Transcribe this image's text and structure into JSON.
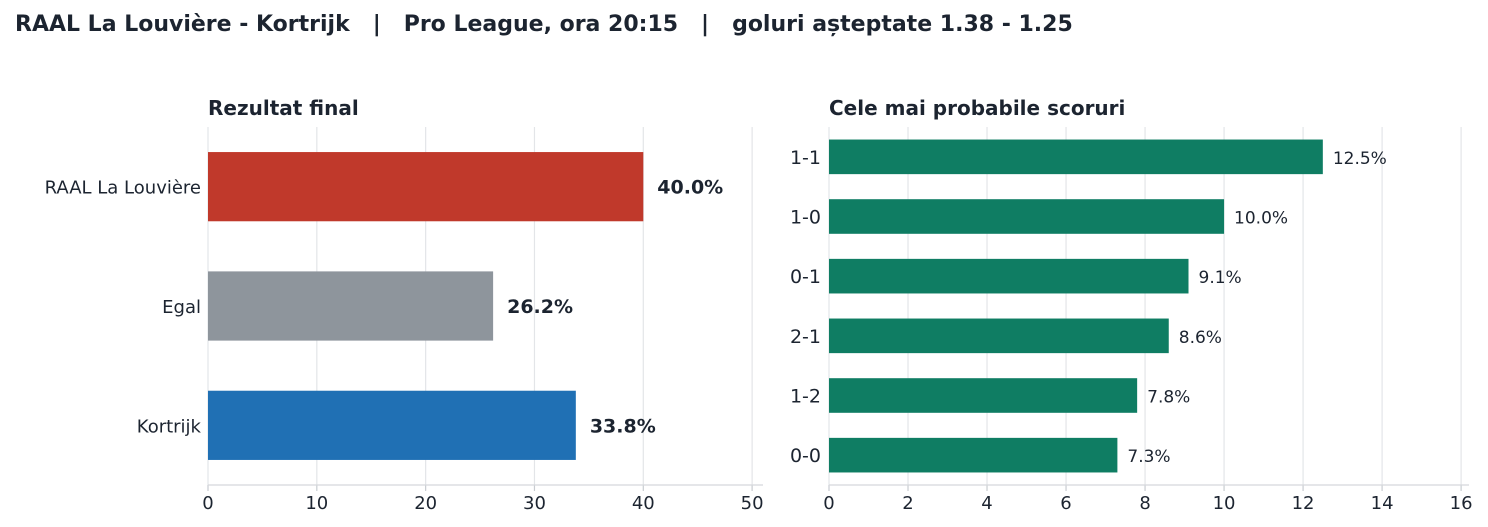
{
  "header": {
    "title": "RAAL La Louvière - Kortrijk   |   Pro League, ora 20:15   |   goluri așteptate 1.38 - 1.25"
  },
  "chart_data": [
    {
      "type": "bar",
      "orientation": "horizontal",
      "title": "Rezultat final",
      "categories": [
        "RAAL La Louvière",
        "Egal",
        "Kortrijk"
      ],
      "values": [
        40.0,
        26.2,
        33.8
      ],
      "value_labels": [
        "40.0%",
        "26.2%",
        "33.8%"
      ],
      "colors": [
        "#c0392b",
        "#8e959c",
        "#2070b4"
      ],
      "xlim": [
        0,
        51
      ],
      "xticks": [
        0,
        10,
        20,
        30,
        40,
        50
      ],
      "grid": true
    },
    {
      "type": "bar",
      "orientation": "horizontal",
      "title": "Cele mai probabile scoruri",
      "categories": [
        "1-1",
        "1-0",
        "0-1",
        "2-1",
        "1-2",
        "0-0"
      ],
      "values": [
        12.5,
        10.0,
        9.1,
        8.6,
        7.8,
        7.3
      ],
      "value_labels": [
        "12.5%",
        "10.0%",
        "9.1%",
        "8.6%",
        "7.8%",
        "7.3%"
      ],
      "colors": [
        "#0f7d63"
      ],
      "xlim": [
        0,
        16.2
      ],
      "xticks": [
        0,
        2,
        4,
        6,
        8,
        10,
        12,
        14,
        16
      ],
      "grid": true
    }
  ]
}
